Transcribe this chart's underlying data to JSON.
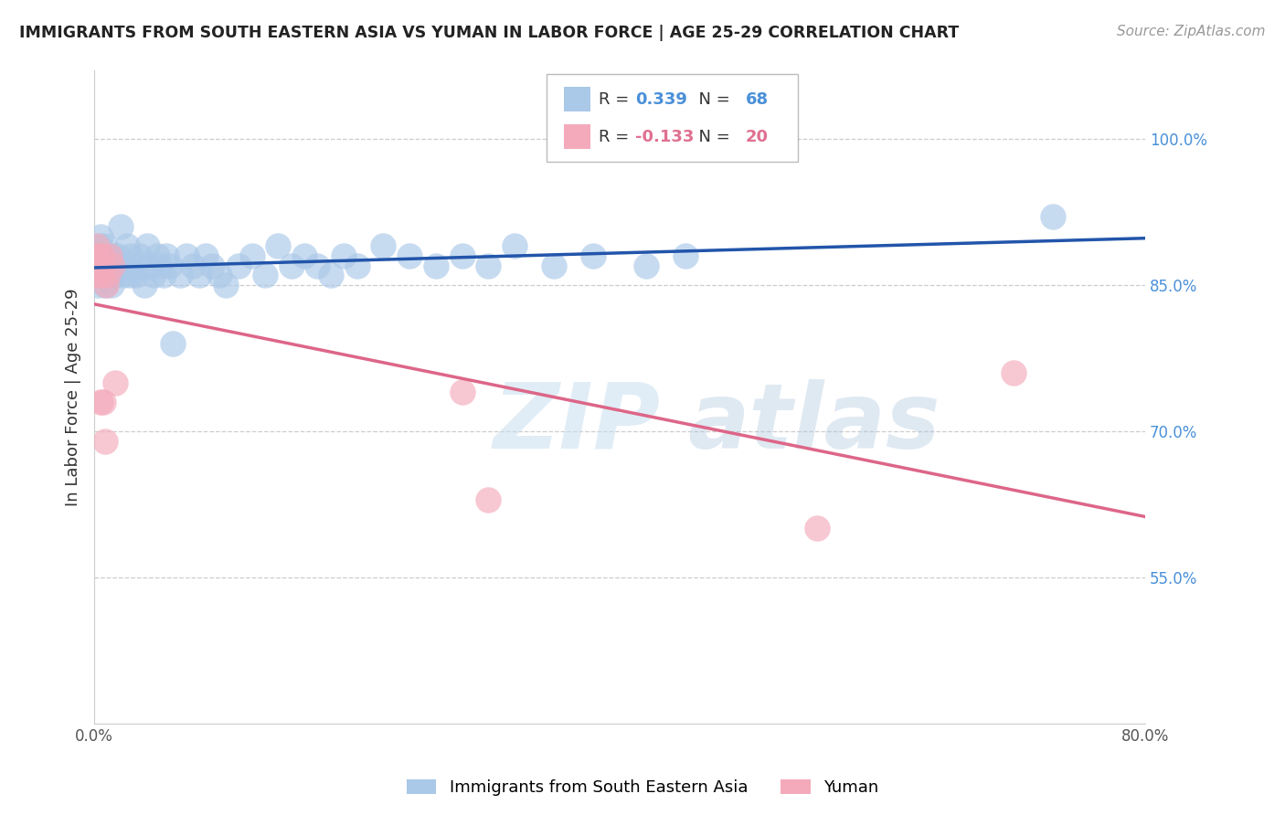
{
  "title": "IMMIGRANTS FROM SOUTH EASTERN ASIA VS YUMAN IN LABOR FORCE | AGE 25-29 CORRELATION CHART",
  "source": "Source: ZipAtlas.com",
  "ylabel": "In Labor Force | Age 25-29",
  "xlim": [
    0.0,
    0.8
  ],
  "ylim": [
    0.4,
    1.07
  ],
  "blue_r": 0.339,
  "blue_n": 68,
  "pink_r": -0.133,
  "pink_n": 20,
  "blue_color": "#aac8e8",
  "pink_color": "#f4aabb",
  "blue_line_color": "#2255aa",
  "pink_line_color": "#dd6688",
  "legend_blue_label": "Immigrants from South Eastern Asia",
  "legend_pink_label": "Yuman",
  "r_color_blue": "#4a90d9",
  "r_color_pink": "#e07090",
  "watermark_zip": "ZIP",
  "watermark_atlas": "atlas",
  "yticks": [
    0.55,
    0.7,
    0.85,
    1.0
  ],
  "yticklabels": [
    "55.0%",
    "70.0%",
    "85.0%",
    "100.0%"
  ],
  "blue_scatter_x": [
    0.002,
    0.003,
    0.003,
    0.004,
    0.005,
    0.005,
    0.006,
    0.007,
    0.008,
    0.008,
    0.009,
    0.01,
    0.01,
    0.011,
    0.012,
    0.013,
    0.014,
    0.015,
    0.016,
    0.018,
    0.02,
    0.022,
    0.023,
    0.025,
    0.027,
    0.028,
    0.03,
    0.032,
    0.035,
    0.038,
    0.04,
    0.042,
    0.045,
    0.048,
    0.05,
    0.053,
    0.055,
    0.058,
    0.06,
    0.065,
    0.07,
    0.075,
    0.08,
    0.085,
    0.09,
    0.095,
    0.1,
    0.11,
    0.12,
    0.13,
    0.14,
    0.15,
    0.16,
    0.17,
    0.18,
    0.19,
    0.2,
    0.22,
    0.24,
    0.26,
    0.28,
    0.3,
    0.32,
    0.35,
    0.38,
    0.42,
    0.45,
    0.73
  ],
  "blue_scatter_y": [
    0.87,
    0.88,
    0.85,
    0.89,
    0.86,
    0.9,
    0.87,
    0.88,
    0.85,
    0.89,
    0.86,
    0.87,
    0.88,
    0.86,
    0.87,
    0.85,
    0.88,
    0.86,
    0.87,
    0.88,
    0.91,
    0.86,
    0.87,
    0.89,
    0.86,
    0.88,
    0.87,
    0.86,
    0.88,
    0.85,
    0.89,
    0.87,
    0.86,
    0.88,
    0.87,
    0.86,
    0.88,
    0.87,
    0.79,
    0.86,
    0.88,
    0.87,
    0.86,
    0.88,
    0.87,
    0.86,
    0.85,
    0.87,
    0.88,
    0.86,
    0.89,
    0.87,
    0.88,
    0.87,
    0.86,
    0.88,
    0.87,
    0.89,
    0.88,
    0.87,
    0.88,
    0.87,
    0.89,
    0.87,
    0.88,
    0.87,
    0.88,
    0.92
  ],
  "pink_scatter_x": [
    0.001,
    0.002,
    0.002,
    0.003,
    0.003,
    0.004,
    0.005,
    0.006,
    0.006,
    0.007,
    0.008,
    0.009,
    0.01,
    0.012,
    0.014,
    0.016,
    0.28,
    0.3,
    0.55,
    0.7
  ],
  "pink_scatter_y": [
    0.88,
    0.89,
    0.87,
    0.87,
    0.86,
    0.88,
    0.73,
    0.88,
    0.86,
    0.73,
    0.69,
    0.85,
    0.86,
    0.88,
    0.87,
    0.75,
    0.74,
    0.63,
    0.6,
    0.76
  ]
}
